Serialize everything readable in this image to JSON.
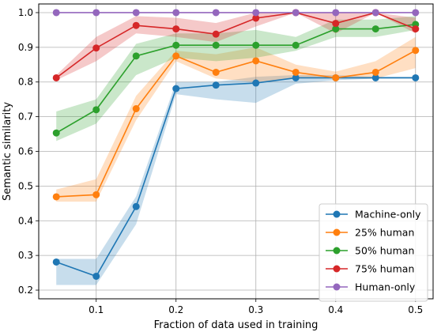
{
  "chart_data": {
    "type": "line",
    "xlabel": "Fraction of data used in training",
    "ylabel": "Semantic similarity",
    "xlim": [
      0.028,
      0.522
    ],
    "ylim": [
      0.175,
      1.025
    ],
    "xticks": [
      0.1,
      0.2,
      0.3,
      0.4,
      0.5
    ],
    "xtick_labels": [
      "0.1",
      "0.2",
      "0.3",
      "0.4",
      "0.5"
    ],
    "yticks": [
      0.2,
      0.3,
      0.4,
      0.5,
      0.6,
      0.7,
      0.8,
      0.9,
      1.0
    ],
    "ytick_labels": [
      "0.2",
      "0.3",
      "0.4",
      "0.5",
      "0.6",
      "0.7",
      "0.8",
      "0.9",
      "1.0"
    ],
    "grid": true,
    "legend_position": "lower-right",
    "x": [
      0.05,
      0.1,
      0.15,
      0.2,
      0.25,
      0.3,
      0.35,
      0.4,
      0.45,
      0.5
    ],
    "series": [
      {
        "name": "Machine-only",
        "color": "#1f77b4",
        "values": [
          0.281,
          0.24,
          0.441,
          0.781,
          0.791,
          0.797,
          0.812,
          0.812,
          0.812,
          0.812
        ],
        "lower": [
          0.215,
          0.215,
          0.39,
          0.765,
          0.75,
          0.74,
          0.795,
          0.805,
          0.81,
          0.81
        ],
        "upper": [
          0.29,
          0.29,
          0.47,
          0.8,
          0.8,
          0.815,
          0.82,
          0.82,
          0.815,
          0.815
        ]
      },
      {
        "name": "25% human",
        "color": "#ff7f0e",
        "values": [
          0.469,
          0.475,
          0.723,
          0.875,
          0.828,
          0.861,
          0.828,
          0.812,
          0.828,
          0.891
        ],
        "lower": [
          0.455,
          0.455,
          0.69,
          0.86,
          0.81,
          0.8,
          0.81,
          0.81,
          0.81,
          0.84
        ],
        "upper": [
          0.49,
          0.52,
          0.76,
          0.89,
          0.88,
          0.9,
          0.85,
          0.83,
          0.86,
          0.93
        ]
      },
      {
        "name": "50% human",
        "color": "#2ca02c",
        "values": [
          0.653,
          0.72,
          0.875,
          0.906,
          0.906,
          0.906,
          0.906,
          0.953,
          0.953,
          0.966
        ],
        "lower": [
          0.63,
          0.68,
          0.82,
          0.87,
          0.86,
          0.87,
          0.89,
          0.93,
          0.93,
          0.95
        ],
        "upper": [
          0.715,
          0.75,
          0.91,
          0.94,
          0.94,
          0.95,
          0.93,
          0.98,
          0.98,
          0.99
        ]
      },
      {
        "name": "75% human",
        "color": "#d62728",
        "values": [
          0.812,
          0.898,
          0.963,
          0.953,
          0.938,
          0.984,
          1.0,
          0.969,
          1.0,
          0.953
        ],
        "lower": [
          0.805,
          0.86,
          0.94,
          0.93,
          0.915,
          0.96,
          1.0,
          0.94,
          1.0,
          0.94
        ],
        "upper": [
          0.82,
          0.93,
          0.99,
          0.985,
          0.97,
          1.0,
          1.0,
          1.0,
          1.0,
          0.985
        ]
      },
      {
        "name": "Human-only",
        "color": "#9467bd",
        "values": [
          1.0,
          1.0,
          1.0,
          1.0,
          1.0,
          1.0,
          1.0,
          1.0,
          1.0,
          1.0
        ],
        "lower": [
          1.0,
          1.0,
          1.0,
          1.0,
          1.0,
          1.0,
          1.0,
          1.0,
          1.0,
          1.0
        ],
        "upper": [
          1.0,
          1.0,
          1.0,
          1.0,
          1.0,
          1.0,
          1.0,
          1.0,
          1.0,
          1.0
        ]
      }
    ]
  }
}
